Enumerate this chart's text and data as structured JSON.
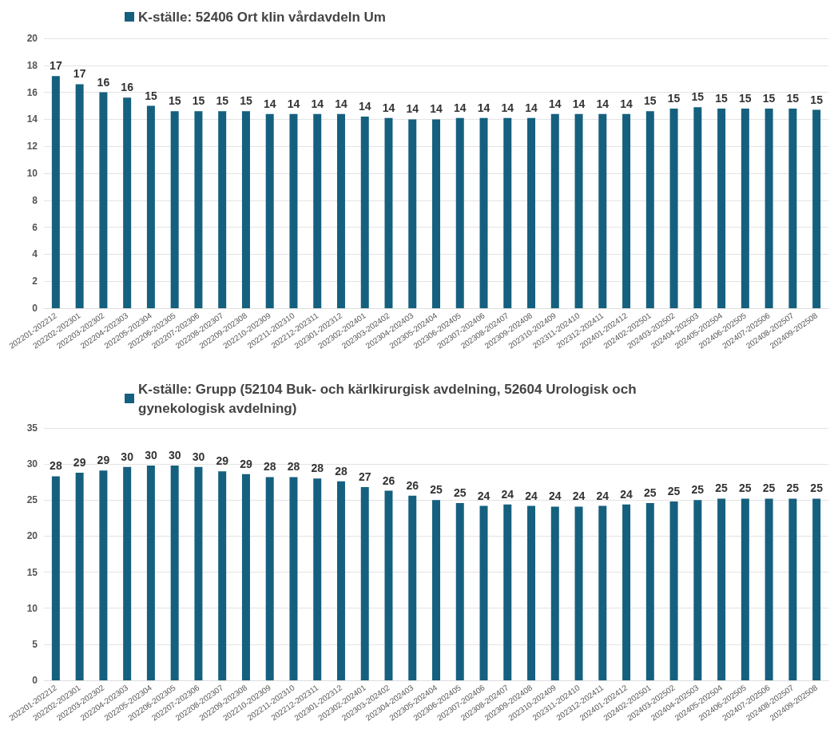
{
  "chart_data": [
    {
      "type": "bar",
      "categories": [
        "202201-202212",
        "202202-202301",
        "202203-202302",
        "202204-202303",
        "202205-202304",
        "202206-202305",
        "202207-202306",
        "202208-202307",
        "202209-202308",
        "202210-202309",
        "202211-202310",
        "202212-202311",
        "202301-202312",
        "202302-202401",
        "202303-202402",
        "202304-202403",
        "202305-202404",
        "202306-202405",
        "202307-202406",
        "202308-202407",
        "202309-202408",
        "202310-202409",
        "202311-202410",
        "202312-202411",
        "202401-202412",
        "202402-202501",
        "202403-202502",
        "202404-202503",
        "202405-202504",
        "202406-202505",
        "202407-202506",
        "202408-202507",
        "202409-202508"
      ],
      "series": [
        {
          "name": "K-ställe: 52406 Ort klin vårdavdeln Um",
          "color": "#15607f",
          "values": [
            17.2,
            16.6,
            16.0,
            15.6,
            15.0,
            14.6,
            14.6,
            14.6,
            14.6,
            14.4,
            14.4,
            14.4,
            14.4,
            14.2,
            14.1,
            14.0,
            14.0,
            14.1,
            14.1,
            14.1,
            14.1,
            14.4,
            14.4,
            14.4,
            14.4,
            14.6,
            14.8,
            14.9,
            14.8,
            14.8,
            14.8,
            14.8,
            14.7
          ],
          "value_labels": [
            "17",
            "17",
            "16",
            "16",
            "15",
            "15",
            "15",
            "15",
            "15",
            "14",
            "14",
            "14",
            "14",
            "14",
            "14",
            "14",
            "14",
            "14",
            "14",
            "14",
            "14",
            "14",
            "14",
            "14",
            "14",
            "15",
            "15",
            "15",
            "15",
            "15",
            "15",
            "15",
            "15"
          ]
        }
      ],
      "ylim": [
        0,
        20
      ],
      "yticks": [
        0,
        2,
        4,
        6,
        8,
        10,
        12,
        14,
        16,
        18,
        20
      ],
      "grid": "y",
      "legend": "top"
    },
    {
      "type": "bar",
      "categories": [
        "202201-202212",
        "202202-202301",
        "202203-202302",
        "202204-202303",
        "202205-202304",
        "202206-202305",
        "202207-202306",
        "202208-202307",
        "202209-202308",
        "202210-202309",
        "202211-202310",
        "202212-202311",
        "202301-202312",
        "202302-202401",
        "202303-202402",
        "202304-202403",
        "202305-202404",
        "202306-202405",
        "202307-202406",
        "202308-202407",
        "202309-202408",
        "202310-202409",
        "202311-202410",
        "202312-202411",
        "202401-202412",
        "202402-202501",
        "202403-202502",
        "202404-202503",
        "202405-202504",
        "202406-202505",
        "202407-202506",
        "202408-202507",
        "202409-202508"
      ],
      "series": [
        {
          "name": "K-ställe: Grupp (52104 Buk- och kärlkirurgisk avdelning, 52604 Urologisk och gynekologisk avdelning)",
          "color": "#15607f",
          "values": [
            28.3,
            28.8,
            29.1,
            29.6,
            29.8,
            29.8,
            29.6,
            29.0,
            28.6,
            28.2,
            28.2,
            28.0,
            27.6,
            26.8,
            26.3,
            25.6,
            25.0,
            24.6,
            24.2,
            24.4,
            24.2,
            24.1,
            24.1,
            24.2,
            24.4,
            24.6,
            24.8,
            25.0,
            25.2,
            25.2,
            25.2,
            25.2,
            25.2
          ],
          "value_labels": [
            "28",
            "29",
            "29",
            "30",
            "30",
            "30",
            "30",
            "29",
            "29",
            "28",
            "28",
            "28",
            "28",
            "27",
            "26",
            "26",
            "25",
            "25",
            "24",
            "24",
            "24",
            "24",
            "24",
            "24",
            "24",
            "25",
            "25",
            "25",
            "25",
            "25",
            "25",
            "25",
            "25"
          ]
        }
      ],
      "ylim": [
        0,
        35
      ],
      "yticks": [
        0,
        5,
        10,
        15,
        20,
        25,
        30,
        35
      ],
      "grid": "y",
      "legend": "top"
    }
  ]
}
